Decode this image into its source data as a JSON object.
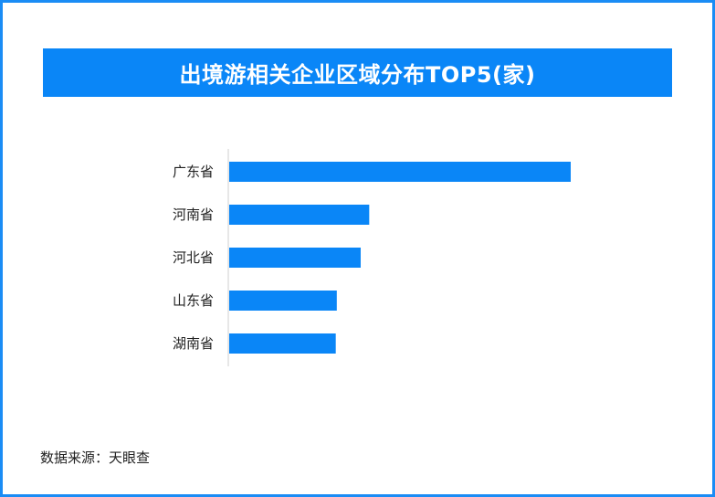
{
  "chart_data": {
    "type": "bar",
    "orientation": "horizontal",
    "title": "出境游相关企业区域分布TOP5(家)",
    "categories": [
      "广东省",
      "河南省",
      "河北省",
      "山东省",
      "湖南省"
    ],
    "values": [
      100,
      41,
      38.5,
      31.5,
      31.2
    ],
    "xlim": [
      0,
      100
    ],
    "grid": false,
    "legend": "none",
    "bar_color": "#0a86f7",
    "axis_color": "#cfcfcf"
  },
  "footer": {
    "source": "数据来源：天眼查"
  },
  "colors": {
    "border": "#1a8cf5",
    "title_background": "#0a86f7"
  }
}
